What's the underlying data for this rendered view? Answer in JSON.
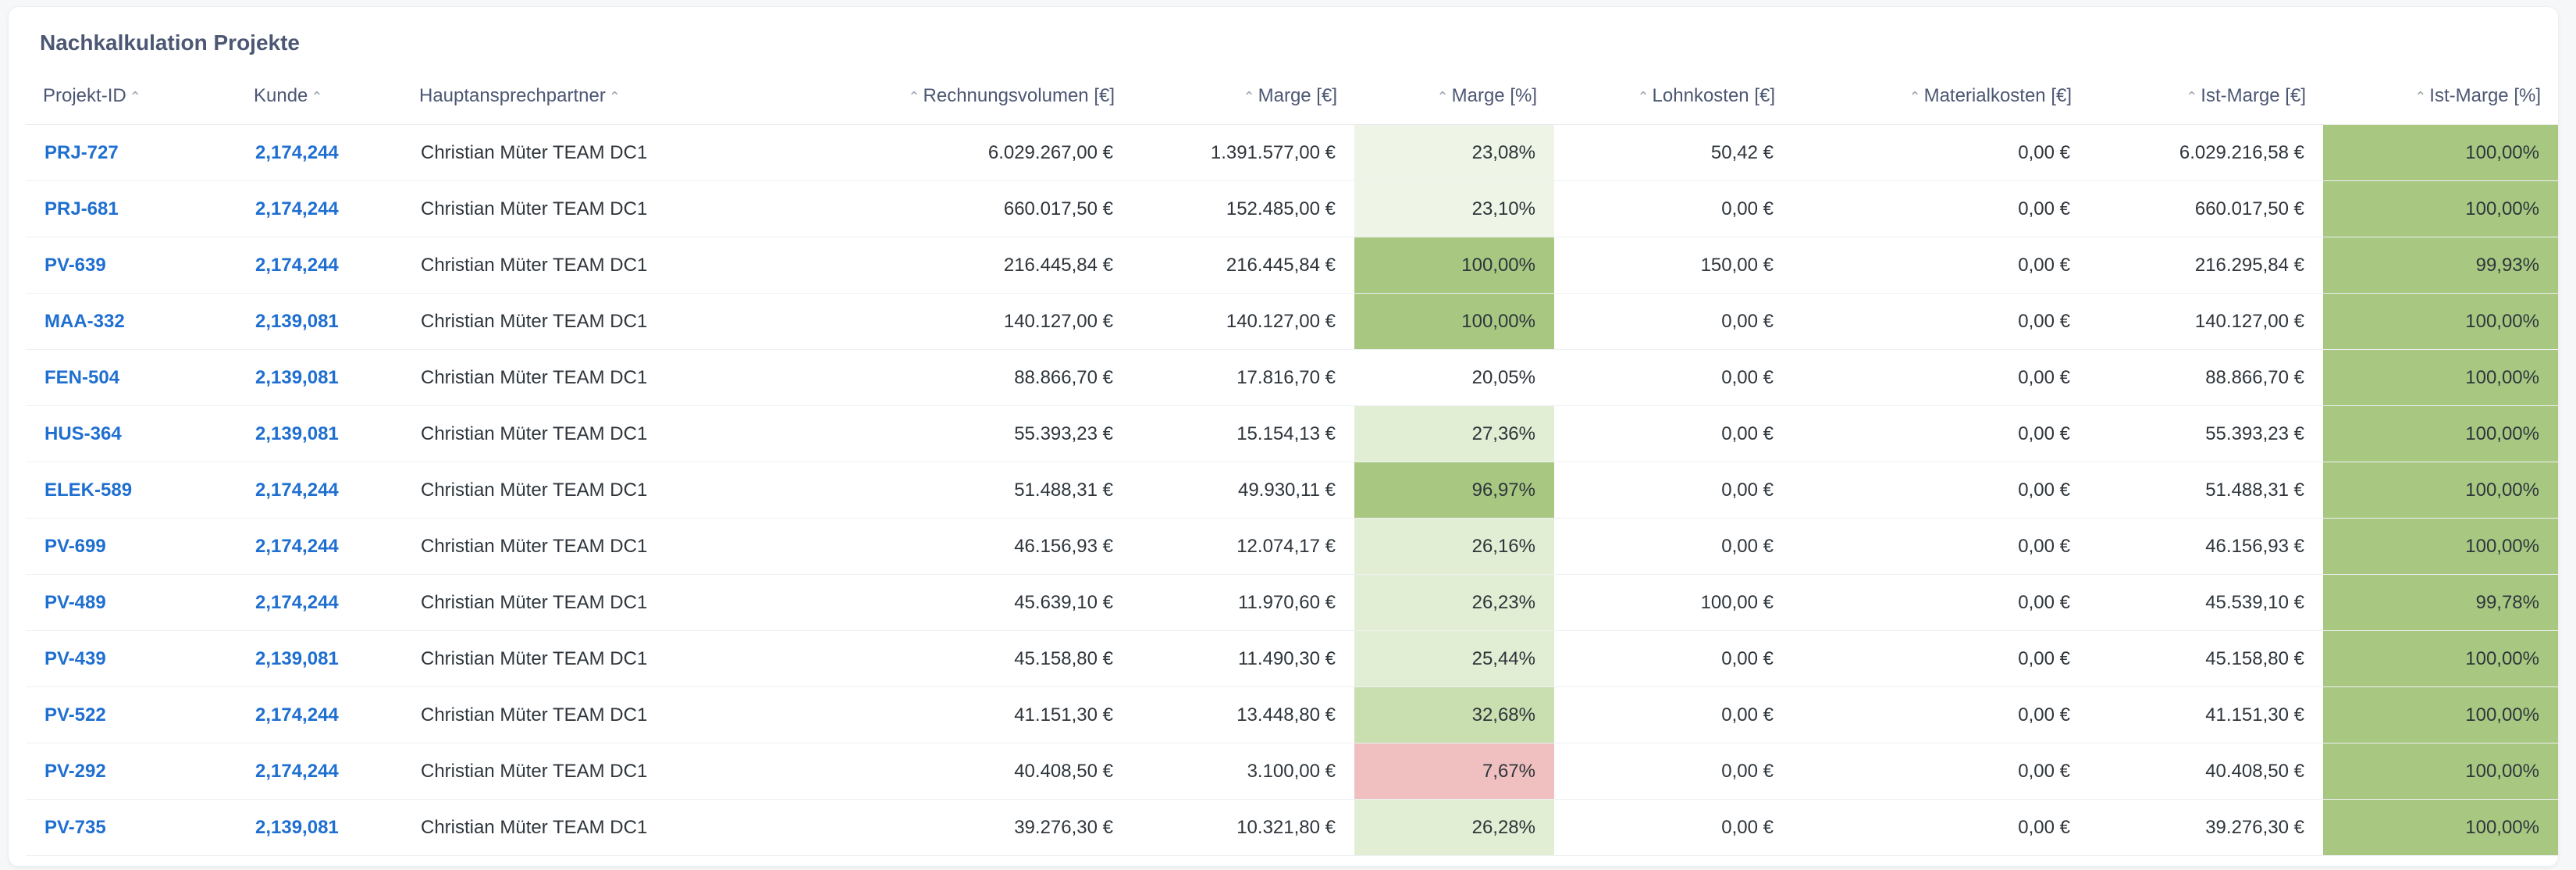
{
  "title": "Nachkalkulation Projekte",
  "colors": {
    "link": "#1f6fd1",
    "green_full": "#a8c882",
    "green_mid": "#c9dfb0",
    "green_light": "#e2eed4",
    "green_faint": "#eef5e6",
    "red": "#f0c0c0",
    "sort_arrow": "#9aa3ad"
  },
  "columns": [
    {
      "label": "Projekt-ID",
      "align": "left",
      "arrow": "up",
      "arrow_side": "after",
      "icon": "sort-arrow-icon"
    },
    {
      "label": "Kunde",
      "align": "left",
      "arrow": "up",
      "arrow_side": "after",
      "icon": "sort-arrow-icon"
    },
    {
      "label": "Hauptansprechpartner",
      "align": "left",
      "arrow": "up",
      "arrow_side": "after",
      "icon": "sort-arrow-icon"
    },
    {
      "label": "Rechnungsvolumen [€]",
      "align": "right",
      "arrow": "up",
      "arrow_side": "before",
      "icon": "sort-arrow-icon"
    },
    {
      "label": "Marge [€]",
      "align": "right",
      "arrow": "up",
      "arrow_side": "before",
      "icon": "sort-arrow-icon"
    },
    {
      "label": "Marge [%]",
      "align": "right",
      "arrow": "up",
      "arrow_side": "before",
      "icon": "sort-arrow-icon"
    },
    {
      "label": "Lohnkosten [€]",
      "align": "right",
      "arrow": "up",
      "arrow_side": "before",
      "icon": "sort-arrow-icon"
    },
    {
      "label": "Materialkosten [€]",
      "align": "right",
      "arrow": "up",
      "arrow_side": "before",
      "icon": "sort-arrow-icon"
    },
    {
      "label": "Ist-Marge [€]",
      "align": "right",
      "arrow": "up",
      "arrow_side": "before",
      "icon": "sort-arrow-icon"
    },
    {
      "label": "Ist-Marge [%]",
      "align": "right",
      "arrow": "up",
      "arrow_side": "before",
      "icon": "sort-arrow-icon"
    }
  ],
  "rows": [
    {
      "id": "PRJ-727",
      "kunde": "2,174,244",
      "kontakt": "Christian Müter TEAM DC1",
      "rechnung": "6.029.267,00 €",
      "marge_eur": "1.391.577,00 €",
      "marge_pct": "23,08%",
      "marge_pct_bg": "#eef5e6",
      "lohn": "50,42 €",
      "material": "0,00 €",
      "ist_eur": "6.029.216,58 €",
      "ist_pct": "100,00%",
      "ist_pct_bg": "#a8c882"
    },
    {
      "id": "PRJ-681",
      "kunde": "2,174,244",
      "kontakt": "Christian Müter TEAM DC1",
      "rechnung": "660.017,50 €",
      "marge_eur": "152.485,00 €",
      "marge_pct": "23,10%",
      "marge_pct_bg": "#eef5e6",
      "lohn": "0,00 €",
      "material": "0,00 €",
      "ist_eur": "660.017,50 €",
      "ist_pct": "100,00%",
      "ist_pct_bg": "#a8c882"
    },
    {
      "id": "PV-639",
      "kunde": "2,174,244",
      "kontakt": "Christian Müter TEAM DC1",
      "rechnung": "216.445,84 €",
      "marge_eur": "216.445,84 €",
      "marge_pct": "100,00%",
      "marge_pct_bg": "#a8c882",
      "lohn": "150,00 €",
      "material": "0,00 €",
      "ist_eur": "216.295,84 €",
      "ist_pct": "99,93%",
      "ist_pct_bg": "#a8c882"
    },
    {
      "id": "MAA-332",
      "kunde": "2,139,081",
      "kontakt": "Christian Müter TEAM DC1",
      "rechnung": "140.127,00 €",
      "marge_eur": "140.127,00 €",
      "marge_pct": "100,00%",
      "marge_pct_bg": "#a8c882",
      "lohn": "0,00 €",
      "material": "0,00 €",
      "ist_eur": "140.127,00 €",
      "ist_pct": "100,00%",
      "ist_pct_bg": "#a8c882"
    },
    {
      "id": "FEN-504",
      "kunde": "2,139,081",
      "kontakt": "Christian Müter TEAM DC1",
      "rechnung": "88.866,70 €",
      "marge_eur": "17.816,70 €",
      "marge_pct": "20,05%",
      "marge_pct_bg": "#ffffff",
      "lohn": "0,00 €",
      "material": "0,00 €",
      "ist_eur": "88.866,70 €",
      "ist_pct": "100,00%",
      "ist_pct_bg": "#a8c882"
    },
    {
      "id": "HUS-364",
      "kunde": "2,139,081",
      "kontakt": "Christian Müter TEAM DC1",
      "rechnung": "55.393,23 €",
      "marge_eur": "15.154,13 €",
      "marge_pct": "27,36%",
      "marge_pct_bg": "#e2eed4",
      "lohn": "0,00 €",
      "material": "0,00 €",
      "ist_eur": "55.393,23 €",
      "ist_pct": "100,00%",
      "ist_pct_bg": "#a8c882"
    },
    {
      "id": "ELEK-589",
      "kunde": "2,174,244",
      "kontakt": "Christian Müter TEAM DC1",
      "rechnung": "51.488,31 €",
      "marge_eur": "49.930,11 €",
      "marge_pct": "96,97%",
      "marge_pct_bg": "#a8c882",
      "lohn": "0,00 €",
      "material": "0,00 €",
      "ist_eur": "51.488,31 €",
      "ist_pct": "100,00%",
      "ist_pct_bg": "#a8c882"
    },
    {
      "id": "PV-699",
      "kunde": "2,174,244",
      "kontakt": "Christian Müter TEAM DC1",
      "rechnung": "46.156,93 €",
      "marge_eur": "12.074,17 €",
      "marge_pct": "26,16%",
      "marge_pct_bg": "#e2eed4",
      "lohn": "0,00 €",
      "material": "0,00 €",
      "ist_eur": "46.156,93 €",
      "ist_pct": "100,00%",
      "ist_pct_bg": "#a8c882"
    },
    {
      "id": "PV-489",
      "kunde": "2,174,244",
      "kontakt": "Christian Müter TEAM DC1",
      "rechnung": "45.639,10 €",
      "marge_eur": "11.970,60 €",
      "marge_pct": "26,23%",
      "marge_pct_bg": "#e2eed4",
      "lohn": "100,00 €",
      "material": "0,00 €",
      "ist_eur": "45.539,10 €",
      "ist_pct": "99,78%",
      "ist_pct_bg": "#a8c882"
    },
    {
      "id": "PV-439",
      "kunde": "2,139,081",
      "kontakt": "Christian Müter TEAM DC1",
      "rechnung": "45.158,80 €",
      "marge_eur": "11.490,30 €",
      "marge_pct": "25,44%",
      "marge_pct_bg": "#e2eed4",
      "lohn": "0,00 €",
      "material": "0,00 €",
      "ist_eur": "45.158,80 €",
      "ist_pct": "100,00%",
      "ist_pct_bg": "#a8c882"
    },
    {
      "id": "PV-522",
      "kunde": "2,174,244",
      "kontakt": "Christian Müter TEAM DC1",
      "rechnung": "41.151,30 €",
      "marge_eur": "13.448,80 €",
      "marge_pct": "32,68%",
      "marge_pct_bg": "#c9dfb0",
      "lohn": "0,00 €",
      "material": "0,00 €",
      "ist_eur": "41.151,30 €",
      "ist_pct": "100,00%",
      "ist_pct_bg": "#a8c882"
    },
    {
      "id": "PV-292",
      "kunde": "2,174,244",
      "kontakt": "Christian Müter TEAM DC1",
      "rechnung": "40.408,50 €",
      "marge_eur": "3.100,00 €",
      "marge_pct": "7,67%",
      "marge_pct_bg": "#f0c0c0",
      "lohn": "0,00 €",
      "material": "0,00 €",
      "ist_eur": "40.408,50 €",
      "ist_pct": "100,00%",
      "ist_pct_bg": "#a8c882"
    },
    {
      "id": "PV-735",
      "kunde": "2,139,081",
      "kontakt": "Christian Müter TEAM DC1",
      "rechnung": "39.276,30 €",
      "marge_eur": "10.321,80 €",
      "marge_pct": "26,28%",
      "marge_pct_bg": "#e2eed4",
      "lohn": "0,00 €",
      "material": "0,00 €",
      "ist_eur": "39.276,30 €",
      "ist_pct": "100,00%",
      "ist_pct_bg": "#a8c882"
    }
  ]
}
